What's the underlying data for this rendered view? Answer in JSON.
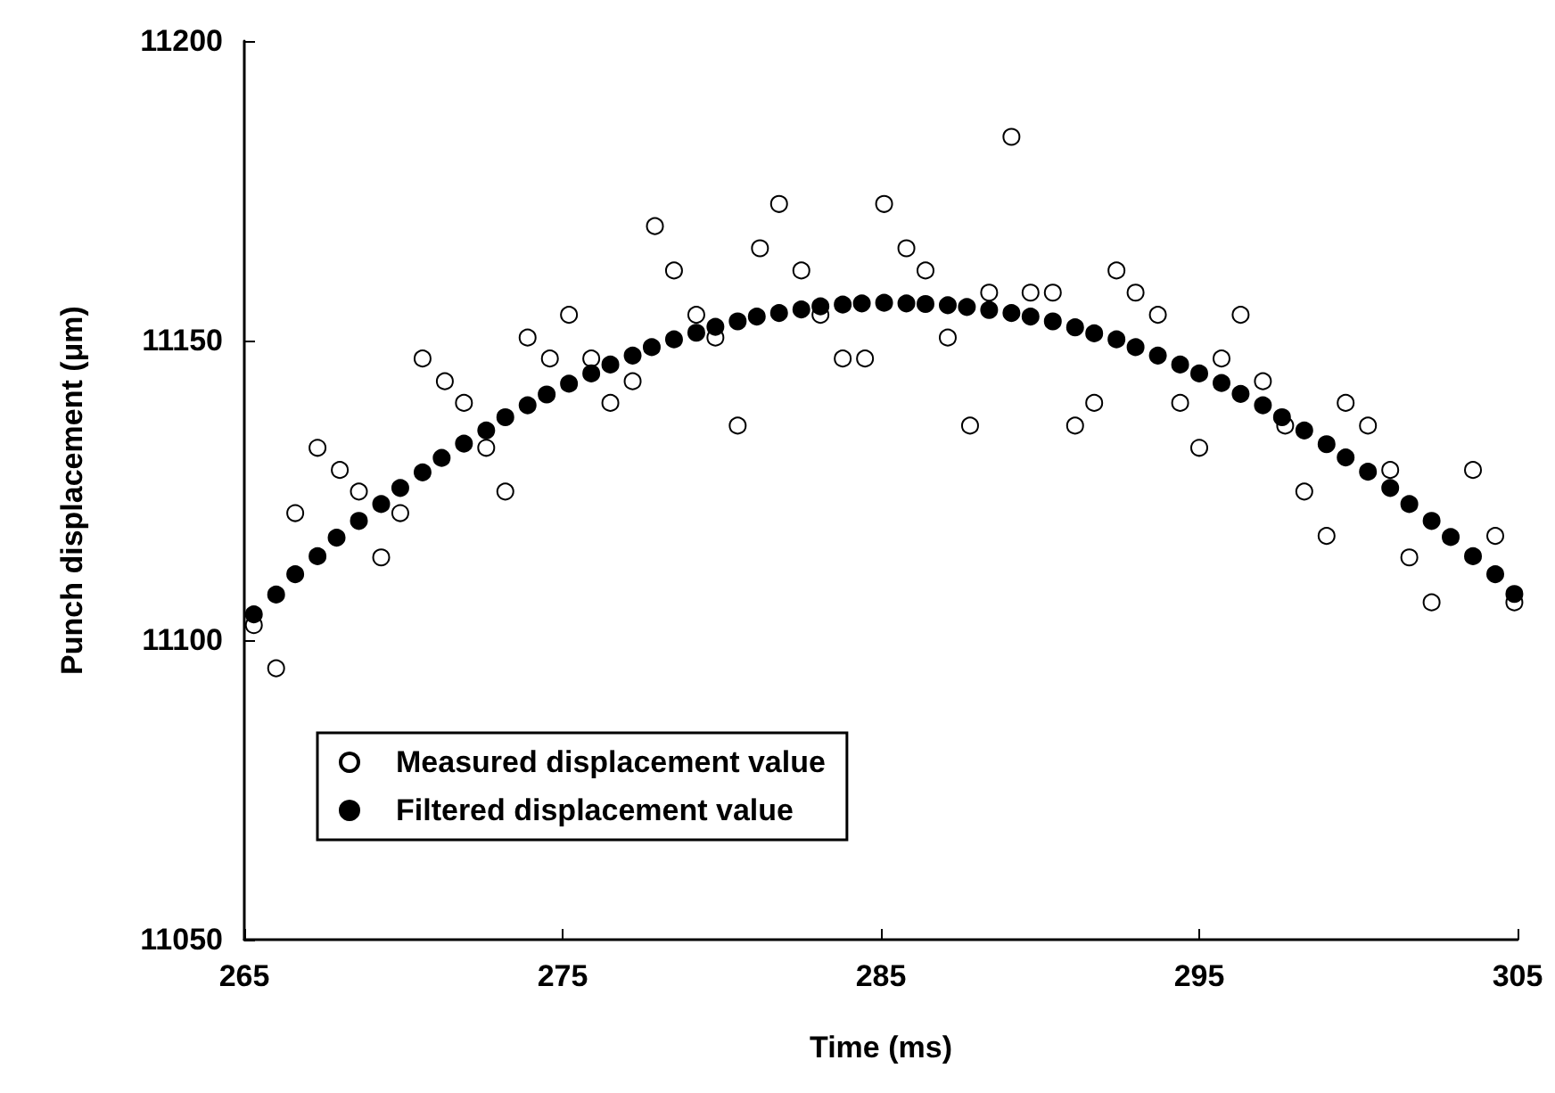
{
  "chart_data": {
    "type": "scatter",
    "xlabel": "Time (ms)",
    "ylabel": "Punch displacement (μm)",
    "xlim": [
      265,
      305
    ],
    "xticks": [
      265,
      275,
      285,
      295,
      305
    ],
    "ylim": [
      11050,
      11200
    ],
    "yticks": [
      11050,
      11100,
      11150,
      11200
    ],
    "grid": false,
    "legend": "bottom left",
    "marker": "circle",
    "series": [
      {
        "name": "Measured displacement value",
        "color": "#ffffff",
        "x": [
          265.3,
          266.0,
          266.6,
          267.3,
          268.0,
          268.6,
          269.3,
          269.9,
          270.6,
          271.3,
          271.9,
          272.6,
          273.2,
          273.9,
          274.6,
          275.2,
          275.9,
          276.5,
          277.2,
          277.9,
          278.5,
          279.2,
          279.8,
          280.5,
          281.2,
          281.8,
          282.5,
          283.1,
          283.8,
          284.5,
          285.1,
          285.8,
          286.4,
          287.1,
          287.8,
          288.4,
          289.1,
          289.7,
          290.4,
          291.1,
          291.7,
          292.4,
          293.0,
          293.7,
          294.4,
          295.0,
          295.7,
          296.3,
          297.0,
          297.7,
          298.3,
          299.0,
          299.6,
          300.3,
          301.0,
          301.6,
          302.3,
          303.6,
          304.3,
          304.9
        ],
        "values": [
          11102.5,
          11095.3,
          11121.2,
          11132.1,
          11128.4,
          11124.8,
          11113.8,
          11121.2,
          11147,
          11143.2,
          11139.6,
          11132.1,
          11124.8,
          11150.5,
          11147,
          11154.3,
          11147,
          11139.6,
          11143.2,
          11169.1,
          11161.7,
          11154.3,
          11150.5,
          11135.8,
          11165.4,
          11172.8,
          11161.7,
          11154.3,
          11147,
          11147,
          11172.8,
          11165.4,
          11161.7,
          11150.5,
          11135.8,
          11158,
          11184,
          11158,
          11158,
          11135.8,
          11139.6,
          11161.7,
          11158,
          11154.3,
          11139.6,
          11132.1,
          11147,
          11154.3,
          11143.2,
          11135.8,
          11124.8,
          11117.4,
          11139.6,
          11135.8,
          11128.4,
          11113.8,
          11106.3,
          11128.4,
          11117.4,
          11106.3
        ]
      },
      {
        "name": "Filtered displacement value",
        "color": "#000000",
        "x": [
          265.3,
          266.0,
          266.6,
          267.3,
          267.9,
          268.6,
          269.3,
          269.9,
          270.6,
          271.2,
          271.9,
          272.6,
          273.2,
          273.9,
          274.5,
          275.2,
          275.9,
          276.5,
          277.2,
          277.8,
          278.5,
          279.2,
          279.8,
          280.5,
          281.1,
          281.8,
          282.5,
          283.1,
          283.8,
          284.4,
          285.1,
          285.8,
          286.4,
          287.1,
          287.7,
          288.4,
          289.1,
          289.7,
          290.4,
          291.1,
          291.7,
          292.4,
          293.0,
          293.7,
          294.4,
          295.0,
          295.7,
          296.3,
          297.0,
          297.6,
          298.3,
          299.0,
          299.6,
          300.3,
          301.0,
          301.6,
          302.3,
          302.9,
          303.6,
          304.3,
          304.9
        ],
        "values": [
          11104.3,
          11107.6,
          11111,
          11114,
          11117.1,
          11119.9,
          11122.7,
          11125.4,
          11128,
          11130.4,
          11132.8,
          11135,
          11137.2,
          11139.2,
          11141,
          11142.8,
          11144.5,
          11146,
          11147.5,
          11148.9,
          11150.2,
          11151.3,
          11152.3,
          11153.2,
          11154,
          11154.6,
          11155.2,
          11155.7,
          11156,
          11156.2,
          11156.3,
          11156.2,
          11156.1,
          11155.9,
          11155.6,
          11155.1,
          11154.6,
          11154,
          11153.2,
          11152.2,
          11151.2,
          11150.2,
          11148.9,
          11147.5,
          11146,
          11144.5,
          11142.9,
          11141.1,
          11139.2,
          11137.2,
          11135,
          11132.7,
          11130.5,
          11128.1,
          11125.4,
          11122.7,
          11119.9,
          11117.2,
          11114,
          11111,
          11107.7
        ]
      }
    ]
  }
}
